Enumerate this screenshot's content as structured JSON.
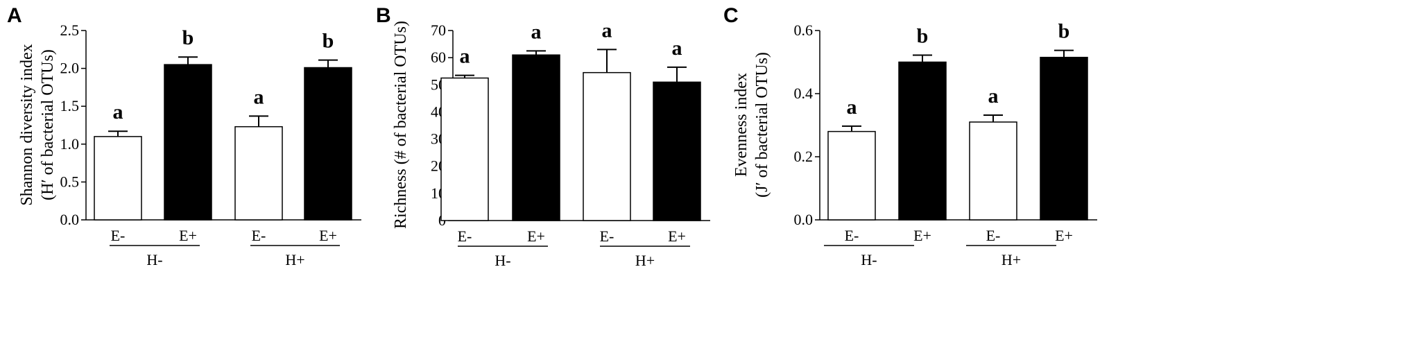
{
  "chart_data": [
    {
      "type": "bar",
      "panel": "A",
      "ylabel_lines": [
        "Shannon diversity index",
        "(H′ of bacterial OTUs)"
      ],
      "ylim": [
        0,
        2.5
      ],
      "yticks": [
        0.0,
        0.5,
        1.0,
        1.5,
        2.0,
        2.5
      ],
      "tick_decimals": 1,
      "categories": [
        "E-",
        "E+",
        "E-",
        "E+"
      ],
      "groups": [
        "H-",
        "H+"
      ],
      "fills": [
        "#ffffff",
        "#000000",
        "#ffffff",
        "#000000"
      ],
      "values": [
        1.1,
        2.05,
        1.23,
        2.01
      ],
      "errors": [
        0.07,
        0.1,
        0.14,
        0.1
      ],
      "significance": [
        "a",
        "b",
        "a",
        "b"
      ]
    },
    {
      "type": "bar",
      "panel": "B",
      "ylabel_lines": [
        "Richness (# of bacterial OTUs)"
      ],
      "ylim": [
        0,
        70
      ],
      "yticks": [
        0,
        10,
        20,
        30,
        40,
        50,
        60,
        70
      ],
      "tick_decimals": 0,
      "categories": [
        "E-",
        "E+",
        "E-",
        "E+"
      ],
      "groups": [
        "H-",
        "H+"
      ],
      "fills": [
        "#ffffff",
        "#000000",
        "#ffffff",
        "#000000"
      ],
      "values": [
        52.5,
        61.0,
        54.5,
        51.0
      ],
      "errors": [
        1.0,
        1.5,
        8.5,
        5.5
      ],
      "significance": [
        "a",
        "a",
        "a",
        "a"
      ]
    },
    {
      "type": "bar",
      "panel": "C",
      "ylabel_lines": [
        "Evenness index",
        "(J′ of bacterial OTUs)"
      ],
      "ylim": [
        0,
        0.6
      ],
      "yticks": [
        0.0,
        0.2,
        0.4,
        0.6
      ],
      "tick_decimals": 1,
      "categories": [
        "E-",
        "E+",
        "E-",
        "E+"
      ],
      "groups": [
        "H-",
        "H+"
      ],
      "fills": [
        "#ffffff",
        "#000000",
        "#ffffff",
        "#000000"
      ],
      "values": [
        0.28,
        0.5,
        0.31,
        0.515
      ],
      "errors": [
        0.017,
        0.022,
        0.022,
        0.022
      ],
      "significance": [
        "a",
        "b",
        "a",
        "b"
      ]
    }
  ]
}
